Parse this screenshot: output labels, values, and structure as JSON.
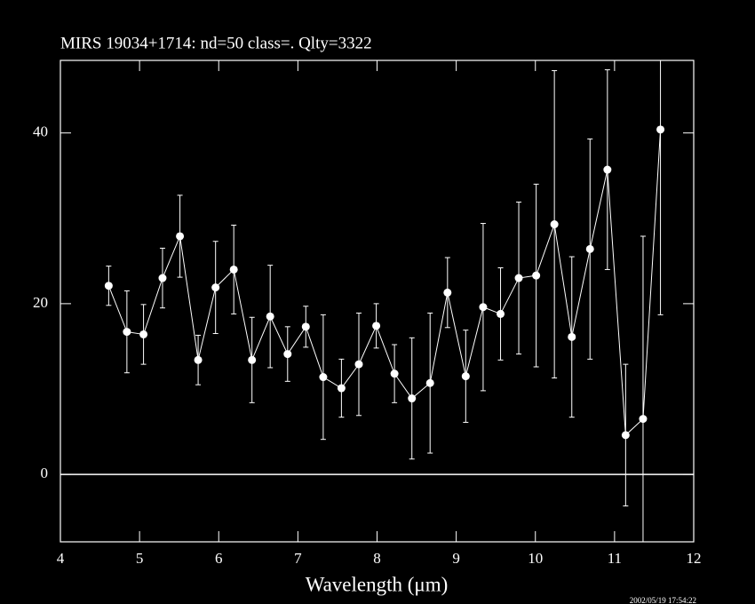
{
  "chart_data": {
    "type": "line",
    "title": "MIRS 19034+1714:    nd=50   class=.   Qlty=3322",
    "x_label": "Wavelength (μm)",
    "annotation": "2002/05/19 17:54:22",
    "color": "#ffffff",
    "x": [
      4.61,
      4.84,
      5.05,
      5.29,
      5.51,
      5.74,
      5.96,
      6.19,
      6.42,
      6.65,
      6.87,
      7.1,
      7.32,
      7.55,
      7.77,
      7.99,
      8.22,
      8.44,
      8.67,
      8.89,
      9.12,
      9.34,
      9.56,
      9.79,
      10.01,
      10.24,
      10.46,
      10.69,
      10.91,
      11.14,
      11.36,
      11.58
    ],
    "values": [
      22.1,
      16.7,
      16.4,
      23.0,
      27.9,
      13.4,
      21.9,
      24.0,
      13.4,
      18.5,
      14.1,
      17.3,
      11.4,
      10.1,
      12.9,
      17.4,
      11.8,
      8.9,
      10.7,
      21.3,
      11.5,
      19.6,
      18.8,
      23.0,
      23.3,
      29.3,
      16.1,
      26.4,
      35.7,
      4.6,
      6.5,
      40.4
    ],
    "errors": [
      2.3,
      4.8,
      3.5,
      3.5,
      4.8,
      2.9,
      5.4,
      5.2,
      5.0,
      6.0,
      3.2,
      2.4,
      7.3,
      3.4,
      6.0,
      2.6,
      3.4,
      7.1,
      8.2,
      4.1,
      5.4,
      9.8,
      5.4,
      8.9,
      10.7,
      18.0,
      9.4,
      12.9,
      11.7,
      8.3,
      21.4,
      21.7
    ],
    "xlim": [
      4,
      12
    ],
    "xticks": [
      4,
      5,
      6,
      7,
      8,
      9,
      10,
      11,
      12
    ],
    "ylim": [
      -7.9,
      48.5
    ],
    "yticks": [
      0,
      20,
      40
    ],
    "hline": 0
  }
}
